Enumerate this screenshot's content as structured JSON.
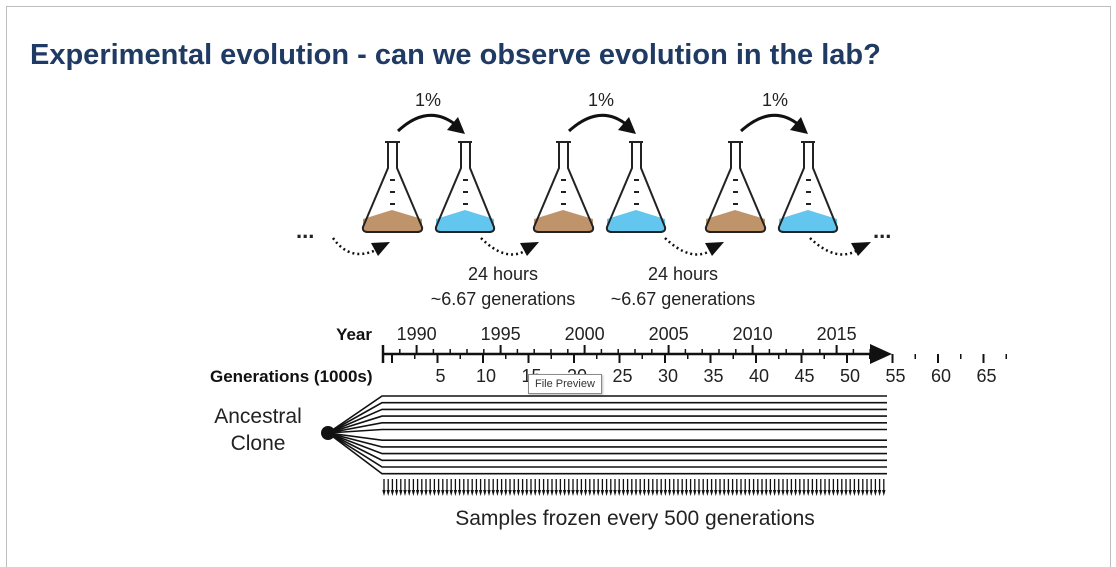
{
  "title": "Experimental evolution - can we observe evolution in the lab?",
  "transfer_labels": [
    "1%",
    "1%",
    "1%"
  ],
  "ellipsis": "...",
  "cycle_labels": [
    {
      "time": "24 hours",
      "generations": "~6.67 generations"
    },
    {
      "time": "24 hours",
      "generations": "~6.67 generations"
    }
  ],
  "timeline": {
    "year_label": "Year",
    "years": [
      "1990",
      "1995",
      "2000",
      "2005",
      "2010",
      "2015"
    ],
    "generations_label": "Generations (1000s)",
    "generations": [
      "5",
      "10",
      "15",
      "20",
      "25",
      "30",
      "35",
      "40",
      "45",
      "50",
      "55",
      "60",
      "65"
    ]
  },
  "ancestral_label": [
    "Ancestral",
    "Clone"
  ],
  "samples_label": "Samples frozen every 500 generations",
  "tooltip": "File Preview",
  "colors": {
    "title": "#1f3a63",
    "media_old": "#c0946a",
    "media_fresh": "#63c6ef"
  }
}
